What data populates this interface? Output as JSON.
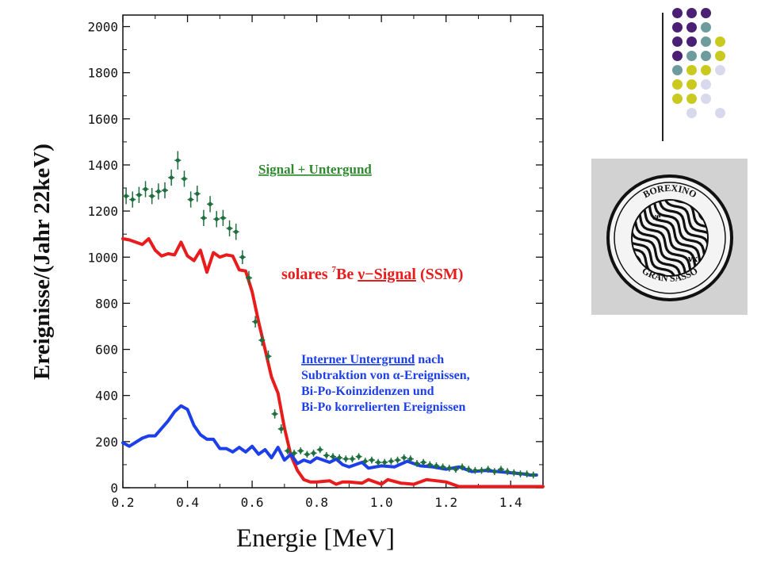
{
  "chart_data": {
    "type": "line",
    "xlabel": "Energie [MeV]",
    "ylabel": "Ereignisse/(Jahr 22keV)",
    "xlim": [
      0.2,
      1.5
    ],
    "ylim": [
      0,
      2050
    ],
    "xticks": [
      "0.2",
      "0.4",
      "0.6",
      "0.8",
      "1.0",
      "1.2",
      "1.4"
    ],
    "xtick_values": [
      0.2,
      0.4,
      0.6,
      0.8,
      1.0,
      1.2,
      1.4
    ],
    "yticks": [
      "0",
      "200",
      "400",
      "600",
      "800",
      "1000",
      "1200",
      "1400",
      "1600",
      "1800",
      "2000"
    ],
    "ytick_values": [
      0,
      200,
      400,
      600,
      800,
      1000,
      1200,
      1400,
      1600,
      1800,
      2000
    ],
    "grid": false,
    "series": [
      {
        "name": "solares 7Be ν−Signal (SSM)",
        "kind": "line",
        "color": "#e81c1c",
        "x": [
          0.2,
          0.22,
          0.26,
          0.28,
          0.3,
          0.32,
          0.34,
          0.36,
          0.38,
          0.4,
          0.42,
          0.44,
          0.46,
          0.48,
          0.5,
          0.52,
          0.54,
          0.56,
          0.58,
          0.6,
          0.62,
          0.64,
          0.66,
          0.68,
          0.7,
          0.72,
          0.74,
          0.76,
          0.78,
          0.8,
          0.84,
          0.86,
          0.88,
          0.9,
          0.94,
          0.96,
          1.0,
          1.02,
          1.06,
          1.1,
          1.14,
          1.2,
          1.24,
          1.3,
          1.4,
          1.5
        ],
        "y": [
          1080,
          1075,
          1055,
          1080,
          1030,
          1005,
          1015,
          1010,
          1065,
          1005,
          985,
          1030,
          935,
          1020,
          1000,
          1010,
          1005,
          945,
          940,
          850,
          720,
          600,
          480,
          410,
          260,
          140,
          75,
          35,
          25,
          25,
          30,
          15,
          25,
          25,
          20,
          35,
          15,
          35,
          20,
          15,
          35,
          25,
          5,
          5,
          5,
          5
        ]
      },
      {
        "name": "Interner Untergrund nach Subtraktion von α-Ereignissen, Bi-Po-Koinzidenzen und Bi-Po korrelierten Ereignissen",
        "kind": "line",
        "color": "#1d3fe8",
        "x": [
          0.2,
          0.22,
          0.26,
          0.28,
          0.3,
          0.34,
          0.36,
          0.38,
          0.4,
          0.42,
          0.44,
          0.46,
          0.48,
          0.5,
          0.52,
          0.54,
          0.56,
          0.58,
          0.6,
          0.62,
          0.64,
          0.66,
          0.68,
          0.7,
          0.72,
          0.74,
          0.76,
          0.78,
          0.8,
          0.84,
          0.86,
          0.88,
          0.9,
          0.94,
          0.96,
          1.0,
          1.04,
          1.08,
          1.12,
          1.16,
          1.2,
          1.24,
          1.28,
          1.32,
          1.36,
          1.4,
          1.44,
          1.46,
          1.48
        ],
        "y": [
          195,
          180,
          215,
          225,
          225,
          290,
          330,
          355,
          340,
          270,
          230,
          210,
          210,
          170,
          170,
          155,
          175,
          155,
          180,
          145,
          165,
          130,
          175,
          120,
          145,
          105,
          120,
          110,
          130,
          110,
          125,
          100,
          90,
          110,
          85,
          95,
          90,
          115,
          95,
          90,
          80,
          90,
          70,
          75,
          70,
          65,
          60,
          55,
          55
        ]
      },
      {
        "name": "Signal + Untergund",
        "kind": "points_with_errorbars",
        "color": "#1e6e3e",
        "x": [
          0.21,
          0.23,
          0.25,
          0.27,
          0.29,
          0.31,
          0.33,
          0.35,
          0.37,
          0.39,
          0.41,
          0.43,
          0.45,
          0.47,
          0.49,
          0.51,
          0.53,
          0.55,
          0.57,
          0.59,
          0.61,
          0.63,
          0.65,
          0.67,
          0.69,
          0.71,
          0.73,
          0.75,
          0.77,
          0.79,
          0.81,
          0.83,
          0.85,
          0.87,
          0.89,
          0.91,
          0.93,
          0.95,
          0.97,
          0.99,
          1.01,
          1.03,
          1.05,
          1.07,
          1.09,
          1.11,
          1.13,
          1.15,
          1.17,
          1.19,
          1.21,
          1.23,
          1.25,
          1.27,
          1.29,
          1.31,
          1.33,
          1.35,
          1.37,
          1.39,
          1.41,
          1.43,
          1.45,
          1.47
        ],
        "y": [
          1265,
          1250,
          1270,
          1295,
          1265,
          1285,
          1290,
          1345,
          1420,
          1340,
          1250,
          1275,
          1170,
          1230,
          1165,
          1170,
          1125,
          1110,
          1000,
          910,
          720,
          640,
          570,
          320,
          255,
          160,
          150,
          160,
          145,
          150,
          165,
          140,
          135,
          130,
          125,
          125,
          135,
          115,
          120,
          110,
          110,
          115,
          120,
          130,
          125,
          105,
          110,
          100,
          95,
          90,
          85,
          80,
          90,
          80,
          75,
          75,
          80,
          70,
          80,
          70,
          65,
          60,
          60,
          55
        ],
        "yerr": [
          35,
          35,
          35,
          35,
          35,
          35,
          35,
          35,
          40,
          35,
          35,
          35,
          35,
          35,
          35,
          35,
          35,
          35,
          30,
          30,
          25,
          25,
          25,
          20,
          20,
          15,
          15,
          15,
          15,
          15,
          15,
          15,
          15,
          15,
          15,
          15,
          15,
          15,
          15,
          15,
          15,
          15,
          15,
          15,
          15,
          15,
          15,
          15,
          15,
          15,
          15,
          15,
          15,
          15,
          15,
          15,
          15,
          15,
          15,
          15,
          15,
          15,
          15,
          15
        ]
      }
    ],
    "annotations": {
      "signal_untergrund": "Signal + Untergund",
      "solar_pre": "solares ",
      "solar_sup": "7",
      "solar_be": "Be ",
      "solar_nu": "ν−Signal",
      "solar_post": " (SSM)",
      "internal_line1_a": "Interner Untergrund",
      "internal_line1_b": " nach",
      "internal_line2": "Subtraktion von α-Ereignissen,",
      "internal_line3": "Bi-Po-Koinzidenzen und",
      "internal_line4": "Bi-Po korrelierten Ereignissen"
    }
  },
  "logo": {
    "top_text": "BOREXINO",
    "bottom_text": "GRAN SASSO",
    "nu_e": "νe",
    "nu_x": "νx"
  },
  "decoration": {
    "dot_colors": [
      "#4b1f73",
      "#6e9c9c",
      "#c9c920",
      "#d9d9ee"
    ]
  }
}
